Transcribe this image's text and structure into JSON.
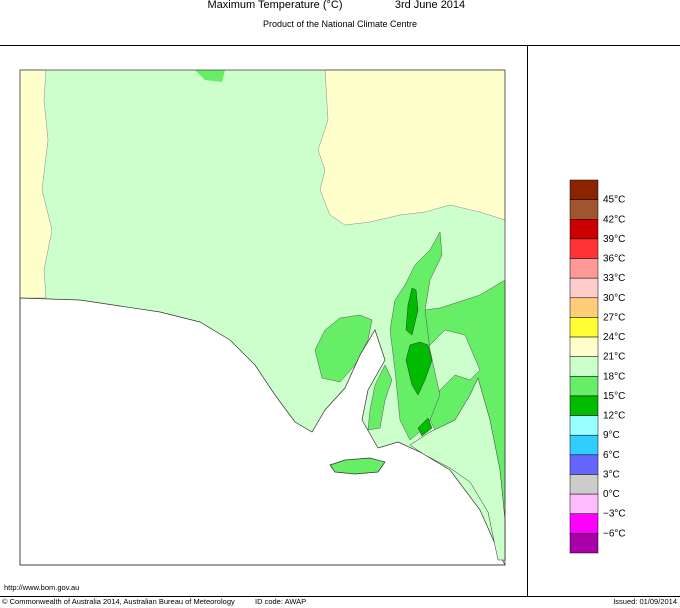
{
  "header": {
    "title": "Maximum Temperature (°C)",
    "date": "3rd June 2014",
    "subtitle": "Product of the National Climate Centre"
  },
  "legend": {
    "colors": [
      "#8b2500",
      "#a0562d",
      "#cc0000",
      "#ff3333",
      "#ff9999",
      "#ffcccc",
      "#ffcc77",
      "#ffff33",
      "#ffffcc",
      "#ccffcc",
      "#66ee66",
      "#00bb00",
      "#99ffff",
      "#33ccff",
      "#6666ff",
      "#cccccc",
      "#ffbbff",
      "#ff00ff",
      "#aa00aa"
    ],
    "labels": [
      "45°C",
      "42°C",
      "39°C",
      "36°C",
      "33°C",
      "30°C",
      "27°C",
      "24°C",
      "21°C",
      "18°C",
      "15°C",
      "12°C",
      "9°C",
      "6°C",
      "3°C",
      "0°C",
      "−3°C",
      "−6°C"
    ]
  },
  "footer": {
    "url": "http://www.bom.gov.au",
    "copyright": "© Commonwealth of Australia 2014, Australian Bureau of Meteorology",
    "id_code": "ID code: AWAP",
    "issued": "Issued: 01/09/2014"
  }
}
